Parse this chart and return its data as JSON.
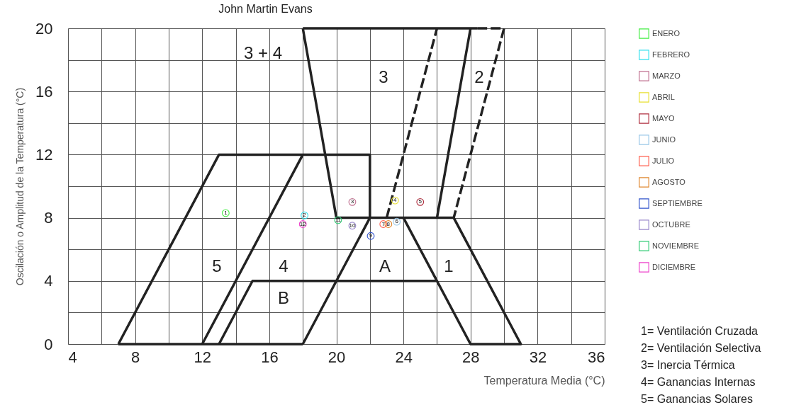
{
  "chart_data": {
    "type": "line",
    "title": "John Martin Evans",
    "xlabel": "Temperatura Media (°C)",
    "ylabel": "Oscilación o Amplitud de la Temperatura (°C)",
    "xlim": [
      4,
      36
    ],
    "ylim": [
      0,
      20
    ],
    "xticks": [
      4,
      {
        "value": 6,
        "label": null
      },
      8,
      {
        "value": 10,
        "label": null
      },
      12,
      {
        "value": 14,
        "label": null
      },
      16,
      {
        "value": 18,
        "label": null
      },
      20,
      {
        "value": 22,
        "label": null
      },
      24,
      {
        "value": 26,
        "label": null
      },
      28,
      {
        "value": 30,
        "label": null
      },
      32,
      {
        "value": 34,
        "label": null
      },
      36
    ],
    "yticks": [
      0,
      {
        "value": 2,
        "label": null
      },
      4,
      {
        "value": 6,
        "label": null
      },
      8,
      {
        "value": 10,
        "label": null
      },
      12,
      {
        "value": 14,
        "label": null
      },
      16,
      {
        "value": 18,
        "label": null
      },
      20
    ],
    "grid": true,
    "legend": "right",
    "series": [
      {
        "color": "#222222",
        "line_style": "solid",
        "x": [
          7,
          13,
          22,
          22
        ],
        "values": [
          0,
          12,
          12,
          8
        ]
      },
      {
        "color": "#222222",
        "line_style": "solid",
        "x": [
          12,
          18
        ],
        "values": [
          0,
          12
        ]
      },
      {
        "color": "#222222",
        "line_style": "solid",
        "x": [
          7,
          18
        ],
        "values": [
          0,
          0
        ]
      },
      {
        "color": "#222222",
        "line_style": "solid",
        "x": [
          13,
          15,
          26
        ],
        "values": [
          0,
          4,
          4
        ]
      },
      {
        "color": "#222222",
        "line_style": "solid",
        "x": [
          18,
          22
        ],
        "values": [
          0,
          8
        ]
      },
      {
        "color": "#222222",
        "line_style": "solid",
        "x": [
          18,
          20,
          27,
          31,
          28,
          24
        ],
        "values": [
          20,
          8,
          8,
          0,
          0,
          8
        ]
      },
      {
        "color": "#222222",
        "line_style": "solid",
        "x": [
          18,
          28.4
        ],
        "values": [
          20,
          20
        ]
      },
      {
        "color": "#222222",
        "line_style": "dashed",
        "x": [
          23,
          26
        ],
        "values": [
          8,
          20
        ]
      },
      {
        "color": "#222222",
        "line_style": "solid",
        "x": [
          26,
          28
        ],
        "values": [
          8,
          20
        ]
      },
      {
        "color": "#222222",
        "line_style": "dashed",
        "x": [
          28.4,
          30,
          27
        ],
        "values": [
          20,
          20,
          8
        ]
      },
      {
        "type": "scatter",
        "marker": "circle",
        "name": "ENERO",
        "color": "#44ee44",
        "x": [
          13.4
        ],
        "values": [
          8.3
        ]
      },
      {
        "type": "scatter",
        "marker": "circle",
        "name": "FEBRERO",
        "color": "#33e0ee",
        "x": [
          18.1
        ],
        "values": [
          8.15
        ]
      },
      {
        "type": "scatter",
        "marker": "circle",
        "name": "MARZO",
        "color": "#c07090",
        "x": [
          20.95
        ],
        "values": [
          9.0
        ]
      },
      {
        "type": "scatter",
        "marker": "circle",
        "name": "ABRIL",
        "color": "#e8e030",
        "x": [
          23.5
        ],
        "values": [
          9.1
        ]
      },
      {
        "type": "scatter",
        "marker": "circle",
        "name": "MAYO",
        "color": "#b03040",
        "x": [
          25.0
        ],
        "values": [
          9.0
        ]
      },
      {
        "type": "scatter",
        "marker": "circle",
        "name": "JUNIO",
        "color": "#99c8e8",
        "x": [
          23.6
        ],
        "values": [
          7.75
        ]
      },
      {
        "type": "scatter",
        "marker": "circle",
        "name": "JULIO",
        "color": "#ff6050",
        "x": [
          22.8
        ],
        "values": [
          7.6
        ]
      },
      {
        "type": "scatter",
        "marker": "circle",
        "name": "AGOSTO",
        "color": "#e08830",
        "x": [
          23.1
        ],
        "values": [
          7.6
        ]
      },
      {
        "type": "scatter",
        "marker": "circle",
        "name": "SEPTIEMBRE",
        "color": "#3355cc",
        "x": [
          22.05
        ],
        "values": [
          6.85
        ]
      },
      {
        "type": "scatter",
        "marker": "circle",
        "name": "OCTUBRE",
        "color": "#9988cc",
        "x": [
          20.95
        ],
        "values": [
          7.5
        ]
      },
      {
        "type": "scatter",
        "marker": "circle",
        "name": "NOVIEMBRE",
        "color": "#33cc77",
        "x": [
          20.1
        ],
        "values": [
          7.85
        ]
      },
      {
        "type": "scatter",
        "marker": "circle",
        "name": "DICIEMBRE",
        "color": "#ee44cc",
        "x": [
          18.0
        ],
        "values": [
          7.6
        ]
      }
    ],
    "annotations": [
      {
        "text": "1",
        "x": 13.4,
        "y": 8.3
      },
      {
        "text": "2",
        "x": 18.1,
        "y": 8.15
      },
      {
        "text": "3",
        "x": 20.95,
        "y": 9.0
      },
      {
        "text": "4",
        "x": 23.5,
        "y": 9.1
      },
      {
        "text": "5",
        "x": 25.0,
        "y": 9.0
      },
      {
        "text": "6",
        "x": 23.6,
        "y": 7.75
      },
      {
        "text": "7",
        "x": 22.8,
        "y": 7.6
      },
      {
        "text": "8",
        "x": 23.1,
        "y": 7.6
      },
      {
        "text": "9",
        "x": 22.05,
        "y": 6.85
      },
      {
        "text": "10",
        "x": 20.95,
        "y": 7.5
      },
      {
        "text": "11",
        "x": 20.1,
        "y": 7.85
      },
      {
        "text": "12",
        "x": 18.0,
        "y": 7.6
      },
      "3 + 4",
      "3",
      "2",
      "5",
      "4",
      "A",
      "1",
      "B",
      "1= Ventilación Cruzada",
      "2= Ventilación Selectiva",
      "3= Inercia Térmica",
      "4= Ganancias Internas",
      "5= Ganancias Solares"
    ]
  }
}
